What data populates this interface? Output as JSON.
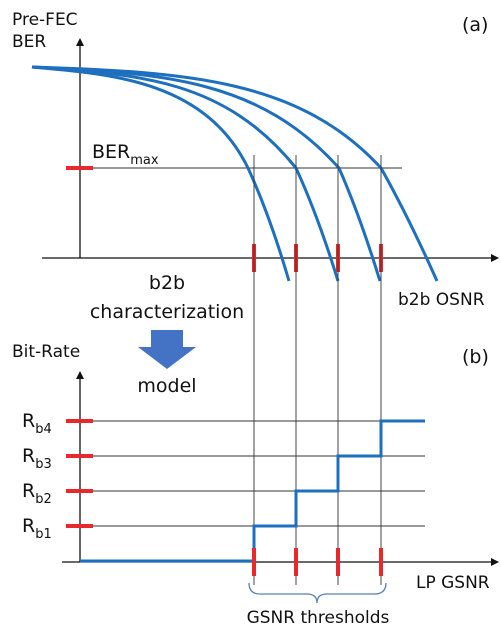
{
  "panel_a": {
    "y_axis_label_line1": "Pre-FEC",
    "y_axis_label_line2": "BER",
    "panel_tag": "(a)",
    "ber_max_main": "BER",
    "ber_max_sub": "max",
    "x_axis_label": "b2b OSNR"
  },
  "process": {
    "line1": "b2b",
    "line2": "characterization",
    "arrow_label": "model",
    "arrow_color": "#4472c4"
  },
  "panel_b": {
    "y_axis_label": "Bit-Rate",
    "panel_tag": "(b)",
    "x_axis_label": "LP GSNR",
    "bracket_label": "GSNR thresholds",
    "levels": [
      {
        "main": "R",
        "sub": "b1"
      },
      {
        "main": "R",
        "sub": "b2"
      },
      {
        "main": "R",
        "sub": "b3"
      },
      {
        "main": "R",
        "sub": "b4"
      }
    ]
  },
  "colors": {
    "curve": "#1f6fbf",
    "tick": "#e8292b",
    "axis": "#111111",
    "guide": "#333333",
    "bracket": "#5b7fb0"
  }
}
